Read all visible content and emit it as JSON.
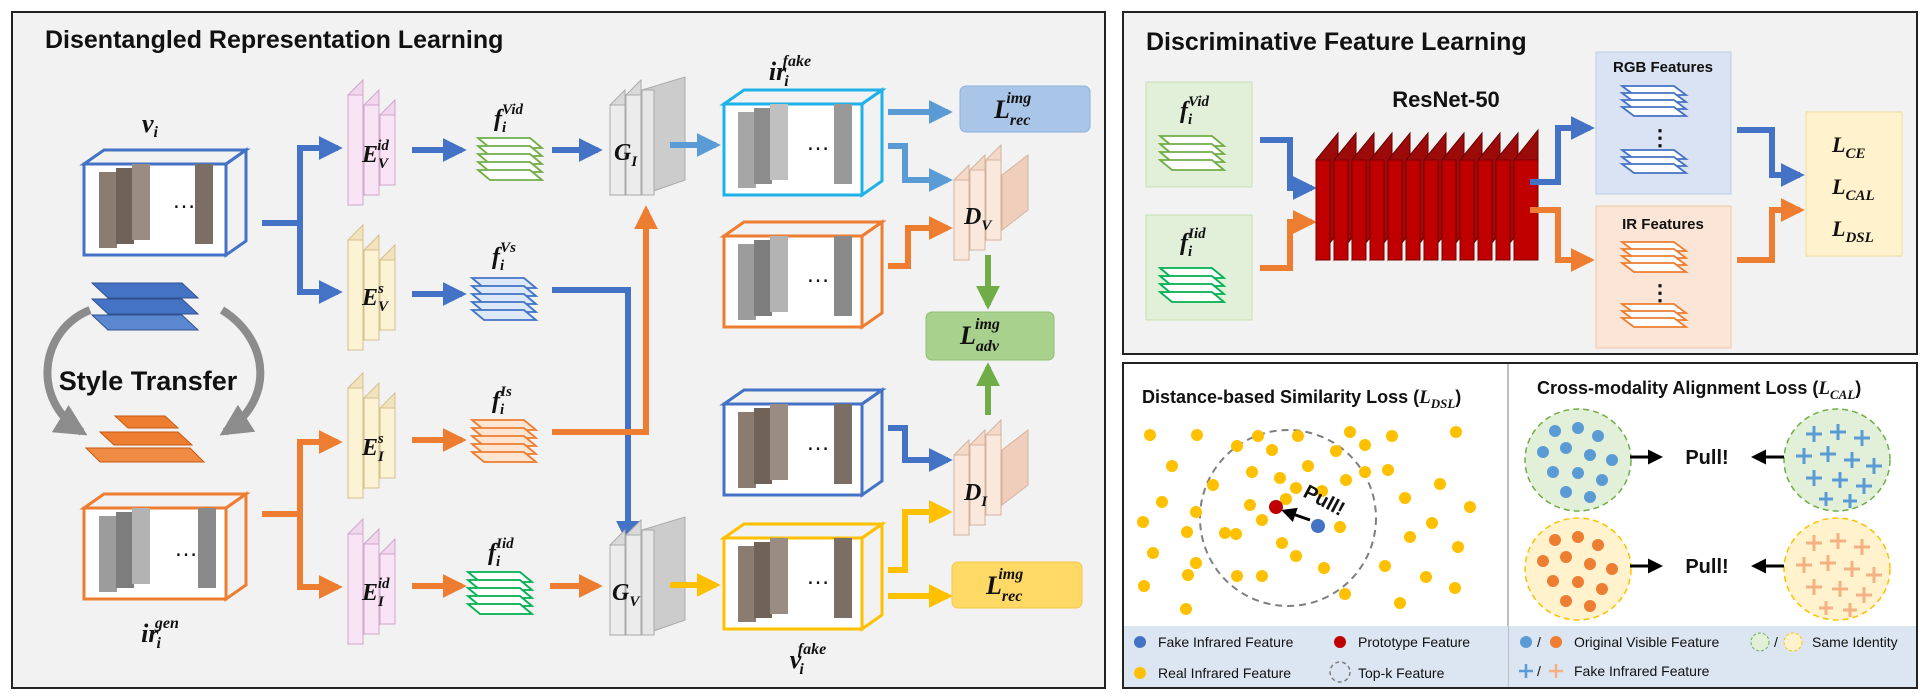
{
  "panels": {
    "drl_title": "Disentangled Representation Learning",
    "dfl_title": "Discriminative Feature Learning",
    "dsl_title": "Distance-based Similarity Loss (",
    "dsl_title_sym": "L",
    "dsl_title_sub": "DSL",
    "cal_title": "Cross-modality Alignment Loss (",
    "cal_title_sym": "L",
    "cal_title_sub": "CAL"
  },
  "drl": {
    "style_transfer": "Style Transfer",
    "ellipsis": "…",
    "v_i": {
      "base": "v",
      "sub": "i",
      "sup": ""
    },
    "ir_gen": {
      "base": "ir",
      "sub": "i",
      "sup": "gen"
    },
    "ir_fake": {
      "base": "ir",
      "sub": "i",
      "sup": "fake"
    },
    "v_fake": {
      "base": "v",
      "sub": "i",
      "sup": "fake"
    },
    "ev_id": {
      "base": "E",
      "sub": "V",
      "sup": "id"
    },
    "ev_s": {
      "base": "E",
      "sub": "V",
      "sup": "s"
    },
    "ei_s": {
      "base": "E",
      "sub": "I",
      "sup": "s"
    },
    "ei_id": {
      "base": "E",
      "sub": "I",
      "sup": "id"
    },
    "f_vid": {
      "base": "f",
      "sub": "i",
      "sup": "Vid"
    },
    "f_vs": {
      "base": "f",
      "sub": "i",
      "sup": "Vs"
    },
    "f_is": {
      "base": "f",
      "sub": "i",
      "sup": "Is"
    },
    "f_iid": {
      "base": "f",
      "sub": "i",
      "sup": "Iid"
    },
    "g_i": {
      "base": "G",
      "sub": "I",
      "sup": ""
    },
    "g_v": {
      "base": "G",
      "sub": "V",
      "sup": ""
    },
    "d_v": {
      "base": "D",
      "sub": "V",
      "sup": ""
    },
    "d_i": {
      "base": "D",
      "sub": "I",
      "sup": ""
    },
    "l_rec_top": {
      "base": "L",
      "sub": "rec",
      "sup": "img"
    },
    "l_adv": {
      "base": "L",
      "sub": "adv",
      "sup": "img"
    },
    "l_rec_bot": {
      "base": "L",
      "sub": "rec",
      "sup": "img"
    }
  },
  "dfl": {
    "resnet": "ResNet-50",
    "rgb_features": "RGB Features",
    "ir_features": "IR Features",
    "ellipsis": "⋮",
    "f_vid": {
      "base": "f",
      "sub": "i",
      "sup": "Vid"
    },
    "f_iid": {
      "base": "f",
      "sub": "i",
      "sup": "Iid"
    },
    "l_ce": {
      "base": "L",
      "sub": "CE",
      "sup": ""
    },
    "l_cal": {
      "base": "L",
      "sub": "CAL",
      "sup": ""
    },
    "l_dsl": {
      "base": "L",
      "sub": "DSL",
      "sup": ""
    }
  },
  "dsl": {
    "pull": "Pull!",
    "legend": {
      "fake_ir": "Fake Infrared Feature",
      "prototype": "Prototype Feature",
      "real_ir": "Real Infrared Feature",
      "topk": "Top-k Feature"
    }
  },
  "cal": {
    "pull_top": "Pull!",
    "pull_bot": "Pull!",
    "legend": {
      "orig_visible": "Original Visible Feature",
      "same_identity": "Same Identity",
      "fake_ir": "Fake Infrared Feature",
      "slash": "/"
    }
  },
  "colors": {
    "blue": "#4472c4",
    "orange": "#ed7d31",
    "gold": "#ffc000",
    "green": "#70ad47",
    "cyan": "#1fb2e8",
    "red": "#c00000",
    "panel_bg": "#f2f2f2",
    "legend_bg": "#dce6f2"
  }
}
